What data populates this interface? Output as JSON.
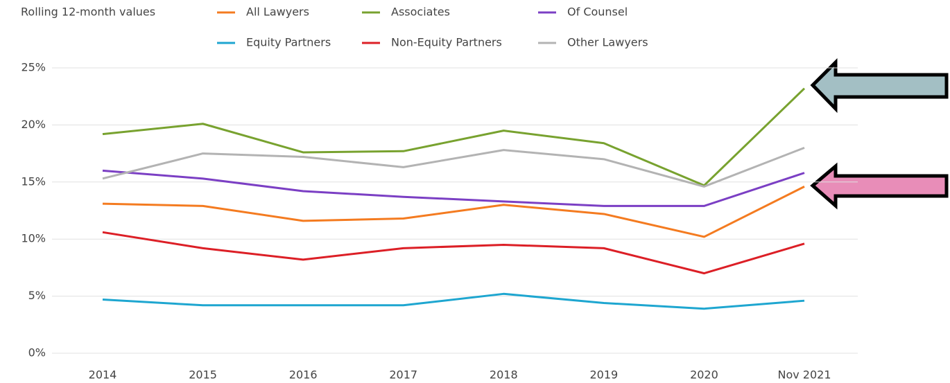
{
  "chart_data": {
    "type": "line",
    "title": "Rolling 12-month values",
    "categories": [
      "2014",
      "2015",
      "2016",
      "2017",
      "2018",
      "2019",
      "2020",
      "Nov 2021"
    ],
    "series": [
      {
        "name": "All Lawyers",
        "color": "#f47b20",
        "values": [
          13.1,
          12.9,
          11.6,
          11.8,
          13.0,
          12.2,
          10.2,
          14.6
        ]
      },
      {
        "name": "Associates",
        "color": "#78a22f",
        "values": [
          19.2,
          20.1,
          17.6,
          17.7,
          19.5,
          18.4,
          14.7,
          23.2
        ]
      },
      {
        "name": "Of Counsel",
        "color": "#7b3fc4",
        "values": [
          16.0,
          15.3,
          14.2,
          13.7,
          13.3,
          12.9,
          12.9,
          15.8
        ]
      },
      {
        "name": "Equity Partners",
        "color": "#1ea6d0",
        "values": [
          4.7,
          4.2,
          4.2,
          4.2,
          5.2,
          4.4,
          3.9,
          4.6
        ]
      },
      {
        "name": "Non-Equity Partners",
        "color": "#dc1f26",
        "values": [
          10.6,
          9.2,
          8.2,
          9.2,
          9.5,
          9.2,
          7.0,
          9.6
        ]
      },
      {
        "name": "Other Lawyers",
        "color": "#b3b3b3",
        "values": [
          15.3,
          17.5,
          17.2,
          16.3,
          17.8,
          17.0,
          14.6,
          18.0
        ]
      }
    ],
    "ylim": [
      0,
      25
    ],
    "yticks": [
      {
        "value": 0,
        "label": "0%"
      },
      {
        "value": 5,
        "label": "5%"
      },
      {
        "value": 10,
        "label": "10%"
      },
      {
        "value": 15,
        "label": "15%"
      },
      {
        "value": 20,
        "label": "20%"
      },
      {
        "value": 25,
        "label": "25%"
      }
    ],
    "grid": true
  }
}
